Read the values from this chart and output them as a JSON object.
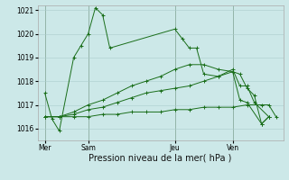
{
  "background_color": "#cce8e8",
  "grid_color": "#aacccc",
  "line_color": "#1a6e1a",
  "title": "Pression niveau de la mer( hPa )",
  "ylim": [
    1015.5,
    1021.2
  ],
  "yticks": [
    1016,
    1017,
    1018,
    1019,
    1020,
    1021
  ],
  "day_labels": [
    "Mer",
    "Sam",
    "Jeu",
    "Ven"
  ],
  "day_positions": [
    0,
    3,
    9,
    13
  ],
  "series": [
    [
      1017.5,
      1016.4,
      1015.9,
      1019.0,
      1019.5,
      1020.0,
      1021.1,
      1020.8,
      1019.4,
      1020.2,
      1019.8,
      1019.4,
      1019.4,
      1018.3,
      1018.2,
      1018.5,
      1017.8,
      1017.8,
      1017.1,
      1016.5
    ],
    [
      1016.5,
      1016.5,
      1016.5,
      1016.5,
      1016.6,
      1016.6,
      1016.7,
      1016.7,
      1016.7,
      1016.8,
      1016.8,
      1016.9,
      1016.9,
      1016.9,
      1017.0,
      1017.0,
      1017.0,
      1016.5
    ],
    [
      1016.5,
      1016.5,
      1016.6,
      1016.8,
      1016.9,
      1017.1,
      1017.3,
      1017.5,
      1017.6,
      1017.7,
      1017.8,
      1018.0,
      1018.2,
      1018.4,
      1017.2,
      1017.1,
      1016.2,
      1016.5
    ],
    [
      1016.5,
      1016.5,
      1016.7,
      1017.0,
      1017.2,
      1017.5,
      1017.8,
      1018.0,
      1018.2,
      1018.5,
      1018.7,
      1018.7,
      1018.5,
      1018.4,
      1018.3,
      1017.7,
      1017.4,
      1016.2,
      1016.5
    ]
  ],
  "series_x": [
    [
      0,
      0.5,
      1,
      2,
      2.5,
      3,
      3.5,
      4,
      4.5,
      9,
      9.5,
      10,
      10.5,
      11,
      12,
      13,
      13.5,
      14,
      14.5,
      15.5
    ],
    [
      0,
      1,
      2,
      3,
      4,
      5,
      6,
      7,
      8,
      9,
      10,
      11,
      12,
      13,
      14,
      15,
      15.5,
      16
    ],
    [
      0,
      1,
      2,
      3,
      4,
      5,
      6,
      7,
      8,
      9,
      10,
      11,
      12,
      13,
      13.5,
      14,
      15,
      15.5
    ],
    [
      0,
      1,
      2,
      3,
      4,
      5,
      6,
      7,
      8,
      9,
      10,
      11,
      12,
      13,
      13.5,
      14,
      14.5,
      15,
      15.5
    ]
  ],
  "xlim": [
    -0.5,
    16.5
  ],
  "figsize": [
    3.2,
    2.0
  ],
  "dpi": 100,
  "tick_fontsize": 5.5,
  "xlabel_fontsize": 7
}
